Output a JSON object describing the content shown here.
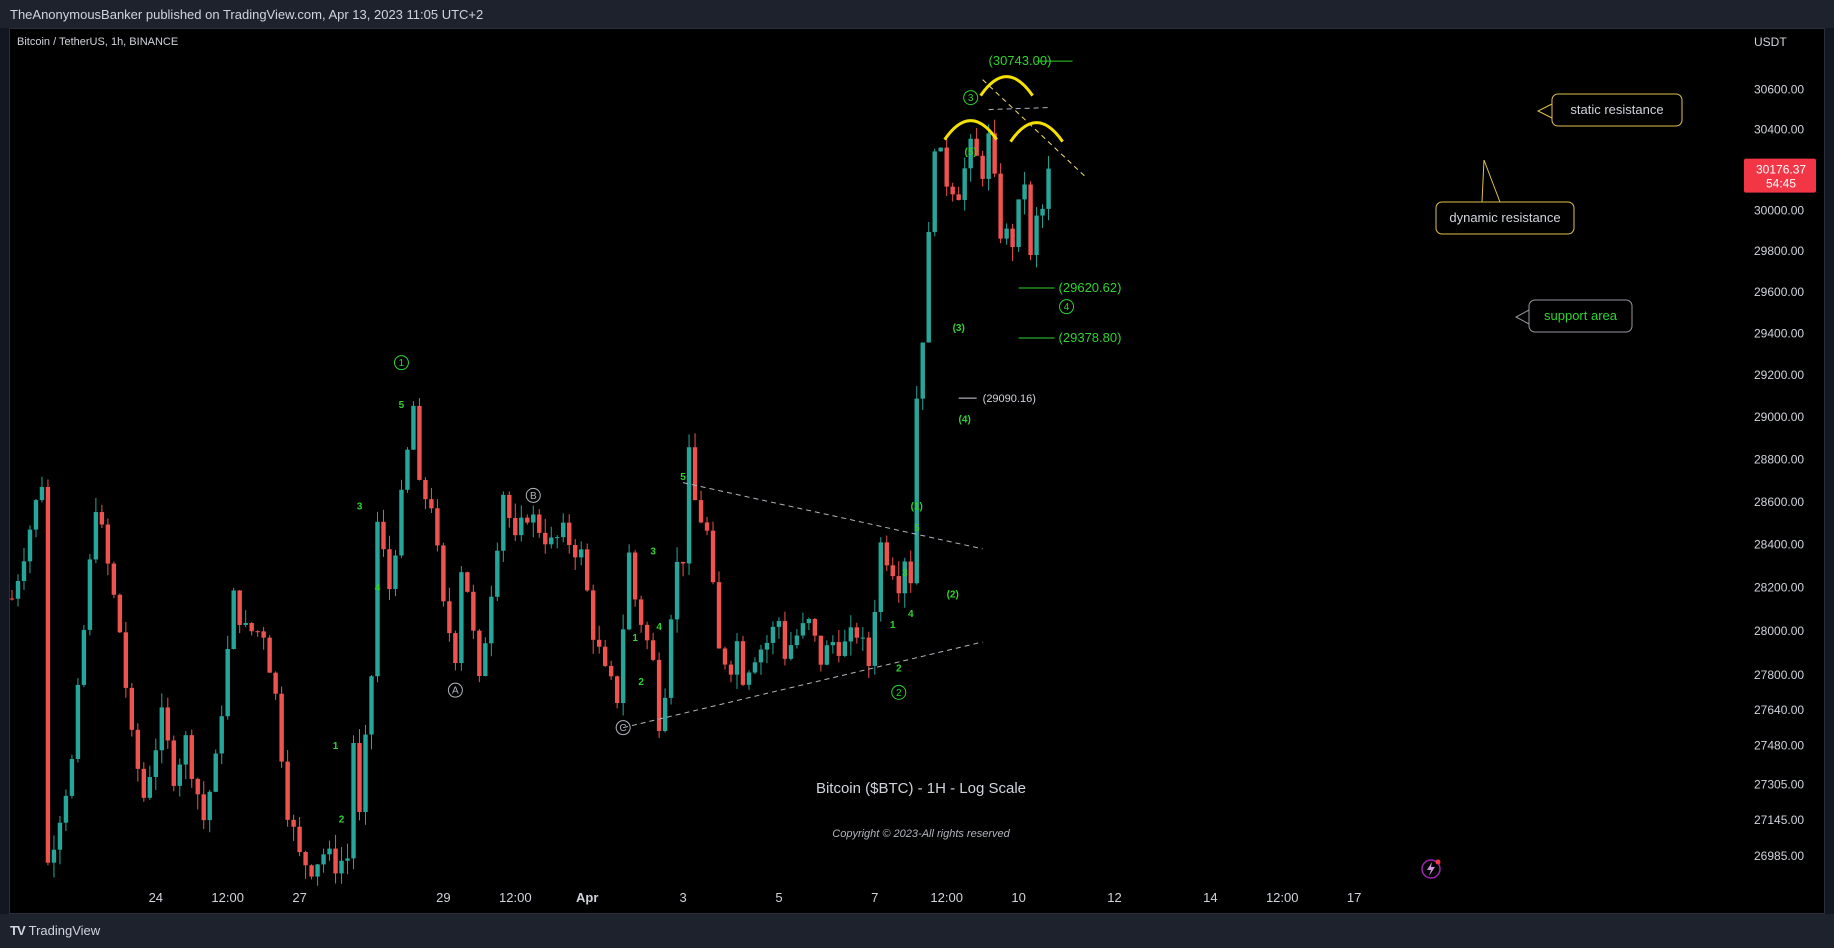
{
  "header": {
    "publisher_line": "TheAnonymousBanker published on TradingView.com, Apr 13, 2023 11:05 UTC+2"
  },
  "footer": {
    "brand": "TradingView"
  },
  "chart_data": {
    "type": "candlestick",
    "symbol_line": "Bitcoin / TetherUS, 1h, BINANCE",
    "title": "Bitcoin ($BTC) - 1H - Log Scale",
    "copyright": "Copyright © 2023-All rights reserved",
    "currency": "USDT",
    "scale": "log",
    "ylim": [
      26880,
      30850
    ],
    "y_ticks": [
      30600,
      30400,
      30200,
      30000,
      29800,
      29600,
      29400,
      29200,
      29000,
      28800,
      28600,
      28400,
      28200,
      28000,
      27800,
      27640,
      27480,
      27305,
      27145,
      26985
    ],
    "x_ticks": [
      {
        "label": "24",
        "i": 24
      },
      {
        "label": "12:00",
        "i": 36
      },
      {
        "label": "27",
        "i": 48
      },
      {
        "label": "29",
        "i": 72
      },
      {
        "label": "12:00",
        "i": 84
      },
      {
        "label": "Apr",
        "i": 96
      },
      {
        "label": "3",
        "i": 112
      },
      {
        "label": "5",
        "i": 128
      },
      {
        "label": "7",
        "i": 144
      },
      {
        "label": "12:00",
        "i": 156
      },
      {
        "label": "10",
        "i": 168
      },
      {
        "label": "12",
        "i": 184
      },
      {
        "label": "14",
        "i": 200
      },
      {
        "label": "12:00",
        "i": 212
      },
      {
        "label": "17",
        "i": 224
      }
    ],
    "last_price": {
      "value": "30176.37",
      "countdown": "54:45"
    },
    "price_path": [
      [
        0,
        28150
      ],
      [
        5,
        28700
      ],
      [
        6,
        26950
      ],
      [
        10,
        27400
      ],
      [
        14,
        28600
      ],
      [
        16,
        28300
      ],
      [
        18,
        28000
      ],
      [
        20,
        27500
      ],
      [
        22,
        27250
      ],
      [
        25,
        27600
      ],
      [
        27,
        27350
      ],
      [
        29,
        27500
      ],
      [
        32,
        27150
      ],
      [
        34,
        27400
      ],
      [
        37,
        28150
      ],
      [
        39,
        28000
      ],
      [
        42,
        28000
      ],
      [
        44,
        27700
      ],
      [
        46,
        27200
      ],
      [
        48,
        26980
      ],
      [
        50,
        26940
      ],
      [
        52,
        27000
      ],
      [
        54,
        26950
      ],
      [
        56,
        26980
      ],
      [
        57,
        27500
      ],
      [
        58,
        27150
      ],
      [
        60,
        27800
      ],
      [
        61,
        28500
      ],
      [
        63,
        28200
      ],
      [
        65,
        28600
      ],
      [
        67,
        29050
      ],
      [
        68,
        28650
      ],
      [
        70,
        28600
      ],
      [
        72,
        28100
      ],
      [
        74,
        27900
      ],
      [
        75,
        28300
      ],
      [
        76,
        28200
      ],
      [
        78,
        27750
      ],
      [
        80,
        28200
      ],
      [
        82,
        28650
      ],
      [
        84,
        28400
      ],
      [
        86,
        28550
      ],
      [
        88,
        28480
      ],
      [
        90,
        28400
      ],
      [
        92,
        28450
      ],
      [
        95,
        28350
      ],
      [
        97,
        28000
      ],
      [
        99,
        27800
      ],
      [
        101,
        27700
      ],
      [
        103,
        28350
      ],
      [
        104,
        28150
      ],
      [
        107,
        27850
      ],
      [
        108,
        27600
      ],
      [
        109,
        27750
      ],
      [
        110,
        28100
      ],
      [
        111,
        28300
      ],
      [
        112,
        28350
      ],
      [
        113,
        28800
      ],
      [
        114,
        28600
      ],
      [
        116,
        28450
      ],
      [
        118,
        27900
      ],
      [
        120,
        27850
      ],
      [
        121,
        27950
      ],
      [
        122,
        27800
      ],
      [
        124,
        27900
      ],
      [
        126,
        27950
      ],
      [
        128,
        28050
      ],
      [
        129,
        27900
      ],
      [
        131,
        27980
      ],
      [
        133,
        28030
      ],
      [
        135,
        27870
      ],
      [
        137,
        27950
      ],
      [
        139,
        27930
      ],
      [
        141,
        28000
      ],
      [
        143,
        27850
      ],
      [
        145,
        28400
      ],
      [
        147,
        28300
      ],
      [
        148,
        28230
      ],
      [
        149,
        28350
      ],
      [
        150,
        28250
      ],
      [
        151,
        29100
      ],
      [
        152,
        29400
      ],
      [
        153,
        29850
      ],
      [
        154,
        30350
      ],
      [
        156,
        30150
      ],
      [
        158,
        30100
      ],
      [
        160,
        30300
      ],
      [
        162,
        30200
      ],
      [
        163,
        30350
      ],
      [
        165,
        29900
      ],
      [
        167,
        29850
      ],
      [
        169,
        30150
      ],
      [
        170,
        29750
      ],
      [
        171,
        29950
      ],
      [
        172,
        30000
      ],
      [
        173,
        30176
      ]
    ],
    "annotations": {
      "waves": [
        {
          "label": "1",
          "i": 65,
          "price": 29260,
          "style": "circle-green"
        },
        {
          "label": "5",
          "i": 65,
          "price": 29060,
          "style": "small-green"
        },
        {
          "label": "3",
          "i": 58,
          "price": 28580,
          "style": "small-green"
        },
        {
          "label": "4",
          "i": 61,
          "price": 28200,
          "style": "small-green"
        },
        {
          "label": "1",
          "i": 54,
          "price": 27480,
          "style": "small-green"
        },
        {
          "label": "2",
          "i": 55,
          "price": 27150,
          "style": "small-green"
        },
        {
          "label": "A",
          "i": 74,
          "price": 27730,
          "style": "circle-grey"
        },
        {
          "label": "B",
          "i": 87,
          "price": 28630,
          "style": "circle-grey"
        },
        {
          "label": "C",
          "i": 102,
          "price": 27560,
          "style": "circle-grey"
        },
        {
          "label": "1",
          "i": 104,
          "price": 27970,
          "style": "small-green"
        },
        {
          "label": "2",
          "i": 105,
          "price": 27770,
          "style": "small-green"
        },
        {
          "label": "3",
          "i": 107,
          "price": 28370,
          "style": "small-green"
        },
        {
          "label": "4",
          "i": 108,
          "price": 28020,
          "style": "small-green"
        },
        {
          "label": "5",
          "i": 112,
          "price": 28720,
          "style": "small-green"
        },
        {
          "label": "1",
          "i": 147,
          "price": 28030,
          "style": "small-green"
        },
        {
          "label": "2",
          "i": 148,
          "price": 27830,
          "style": "small-green"
        },
        {
          "label": "3",
          "i": 149,
          "price": 28270,
          "style": "small-green"
        },
        {
          "label": "4",
          "i": 150,
          "price": 28080,
          "style": "small-green"
        },
        {
          "label": "2",
          "i": 148,
          "price": 27720,
          "style": "circle-green"
        },
        {
          "label": "(1)",
          "i": 151,
          "price": 28580,
          "style": "small-green"
        },
        {
          "label": "5",
          "i": 151,
          "price": 28480,
          "style": "small-green"
        },
        {
          "label": "(2)",
          "i": 157,
          "price": 28170,
          "style": "small-green"
        },
        {
          "label": "(3)",
          "i": 158,
          "price": 29430,
          "style": "small-green"
        },
        {
          "label": "(4)",
          "i": 159,
          "price": 28990,
          "style": "small-green"
        },
        {
          "label": "(5)",
          "i": 160,
          "price": 30290,
          "style": "small-green"
        },
        {
          "label": "3",
          "i": 160,
          "price": 30560,
          "style": "circle-green"
        },
        {
          "label": "4",
          "i": 176,
          "price": 29530,
          "style": "circle-green"
        }
      ],
      "price_labels": [
        {
          "text": "(30743.00)",
          "price": 30743.0
        },
        {
          "text": "(29620.62)",
          "price": 29620.62
        },
        {
          "text": "(29378.80)",
          "price": 29378.8
        },
        {
          "text": "(29090.16)",
          "price": 29090.16
        }
      ],
      "callouts": {
        "static": "static resistance",
        "dynamic": "dynamic resistance",
        "support": "support area"
      }
    }
  }
}
